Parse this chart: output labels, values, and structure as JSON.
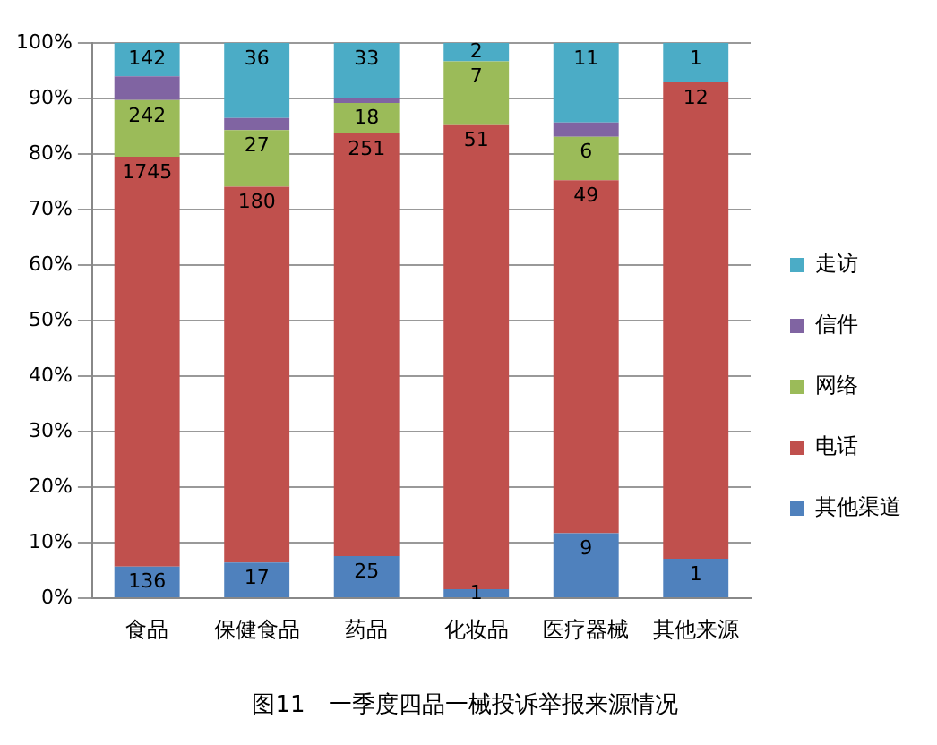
{
  "chart_data": {
    "type": "bar",
    "stacked": true,
    "title": "图11　一季度四品一械投诉举报来源情况",
    "categories": [
      "食品",
      "保健食品",
      "药品",
      "化妆品",
      "医疗器械",
      "其他来源"
    ],
    "series": [
      {
        "name": "其他渠道",
        "color": "#4f81bd",
        "values": [
          5.7,
          6.4,
          7.6,
          1.6,
          11.7,
          7.1
        ]
      },
      {
        "name": "电话",
        "color": "#c0504d",
        "values": [
          73.8,
          67.7,
          76.1,
          83.6,
          63.6,
          85.8
        ]
      },
      {
        "name": "网络",
        "color": "#9bbb59",
        "values": [
          10.2,
          10.2,
          5.5,
          11.5,
          7.8,
          0
        ]
      },
      {
        "name": "信件",
        "color": "#8064a2",
        "values": [
          4.3,
          2.2,
          0.8,
          0,
          2.6,
          0
        ]
      },
      {
        "name": "走访",
        "color": "#4bacc6",
        "values": [
          6.0,
          13.5,
          10.0,
          3.3,
          14.3,
          7.1
        ]
      }
    ],
    "annotations": [
      {
        "text": "136",
        "x": "食品",
        "y": 5.7
      },
      {
        "text": "1745",
        "x": "食品",
        "y": 79.5
      },
      {
        "text": "242",
        "x": "食品",
        "y": 89.7
      },
      {
        "text": "142",
        "x": "食品",
        "y": 100
      },
      {
        "text": "17",
        "x": "保健食品",
        "y": 6.4
      },
      {
        "text": "180",
        "x": "保健食品",
        "y": 74.1
      },
      {
        "text": "27",
        "x": "保健食品",
        "y": 84.3
      },
      {
        "text": "36",
        "x": "保健食品",
        "y": 100
      },
      {
        "text": "25",
        "x": "药品",
        "y": 7.6
      },
      {
        "text": "251",
        "x": "药品",
        "y": 83.7
      },
      {
        "text": "18",
        "x": "药品",
        "y": 89.2
      },
      {
        "text": "33",
        "x": "药品",
        "y": 100
      },
      {
        "text": "1",
        "x": "化妆品",
        "y": 1.6
      },
      {
        "text": "51",
        "x": "化妆品",
        "y": 85.2
      },
      {
        "text": "7",
        "x": "化妆品",
        "y": 96.7
      },
      {
        "text": "2",
        "x": "化妆品",
        "y": 100
      },
      {
        "text": "9",
        "x": "医疗器械",
        "y": 11.7
      },
      {
        "text": "49",
        "x": "医疗器械",
        "y": 75.3
      },
      {
        "text": "6",
        "x": "医疗器械",
        "y": 83.1
      },
      {
        "text": "11",
        "x": "医疗器械",
        "y": 100
      },
      {
        "text": "1",
        "x": "其他来源",
        "y": 7.1
      },
      {
        "text": "12",
        "x": "其他来源",
        "y": 92.9
      },
      {
        "text": "1",
        "x": "其他来源",
        "y": 100
      }
    ],
    "ylim": [
      0,
      100
    ],
    "yticks": [
      {
        "value": 0,
        "label": "0%"
      },
      {
        "value": 10,
        "label": "10%"
      },
      {
        "value": 20,
        "label": "20%"
      },
      {
        "value": 30,
        "label": "30%"
      },
      {
        "value": 40,
        "label": "40%"
      },
      {
        "value": 50,
        "label": "50%"
      },
      {
        "value": 60,
        "label": "60%"
      },
      {
        "value": 70,
        "label": "70%"
      },
      {
        "value": 80,
        "label": "80%"
      },
      {
        "value": 90,
        "label": "90%"
      },
      {
        "value": 100,
        "label": "100%"
      }
    ],
    "grid": "y",
    "legend": "right"
  }
}
